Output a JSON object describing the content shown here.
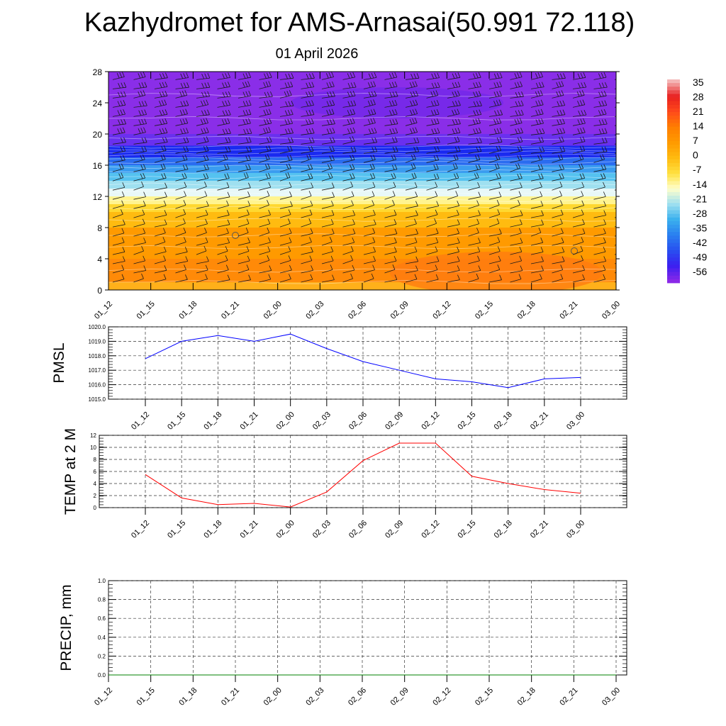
{
  "title": "Kazhydromet for AMS-Arnasai(50.991 72.118)",
  "subtitle": "01 April 2026",
  "colorbar": {
    "labels": [
      "35",
      "28",
      "21",
      "14",
      "7",
      "0",
      "-7",
      "-14",
      "-21",
      "-28",
      "-35",
      "-42",
      "-49",
      "-56"
    ],
    "colors": [
      "#f4b6b6",
      "#e82020",
      "#ff4a1a",
      "#ff7f00",
      "#ff9a00",
      "#ffbb10",
      "#ffe040",
      "#ffffcc",
      "#9fe0f0",
      "#3ab0ee",
      "#2a80f0",
      "#2850f0",
      "#3a20f0",
      "#8a28e8"
    ]
  },
  "chart_data": [
    {
      "type": "heatmap",
      "name": "cross-section",
      "x_ticks": [
        "01_12",
        "01_15",
        "01_18",
        "01_21",
        "02_00",
        "02_03",
        "02_06",
        "02_09",
        "02_12",
        "02_15",
        "02_18",
        "02_21",
        "03_00"
      ],
      "y_ticks": [
        "0",
        "4",
        "8",
        "12",
        "16",
        "20",
        "24",
        "28"
      ],
      "ylim": [
        0,
        28
      ],
      "layers": [
        {
          "from": 0,
          "to": 1,
          "color": "#ffb01a"
        },
        {
          "from": 1,
          "to": 4,
          "color": "#ff8a08"
        },
        {
          "from": 4,
          "to": 8,
          "color": "#ff9a00"
        },
        {
          "from": 8,
          "to": 10,
          "color": "#ffbb10"
        },
        {
          "from": 10,
          "to": 11,
          "color": "#ffd830"
        },
        {
          "from": 11,
          "to": 12,
          "color": "#fff490"
        },
        {
          "from": 12,
          "to": 13,
          "color": "#e8f8f8"
        },
        {
          "from": 13,
          "to": 14,
          "color": "#9fe0f0"
        },
        {
          "from": 14,
          "to": 15,
          "color": "#55c2f0"
        },
        {
          "from": 15,
          "to": 16,
          "color": "#3a9cf0"
        },
        {
          "from": 16,
          "to": 17,
          "color": "#2a6cf0"
        },
        {
          "from": 17,
          "to": 18.5,
          "color": "#1a2af0"
        },
        {
          "from": 18.5,
          "to": 20,
          "color": "#6a30ee"
        },
        {
          "from": 20,
          "to": 28,
          "color": "#8a2ee8"
        }
      ],
      "grid": false
    },
    {
      "type": "line",
      "x": [
        "01_12",
        "01_15",
        "01_18",
        "01_21",
        "02_00",
        "02_03",
        "02_06",
        "02_09",
        "02_12",
        "02_15",
        "02_18",
        "02_21",
        "03_00"
      ],
      "y_ticks": [
        "1015.0",
        "1016.0",
        "1017.0",
        "1018.0",
        "1019.0",
        "1020.0"
      ],
      "ylim": [
        1015.0,
        1020.0
      ],
      "ylabel": "PMSL",
      "series": [
        {
          "values": [
            1017.8,
            1019.0,
            1019.4,
            1019.0,
            1019.5,
            1018.5,
            1017.6,
            1017.0,
            1016.4,
            1016.2,
            1015.8,
            1016.4,
            1016.5
          ],
          "color": "#0000ff"
        }
      ],
      "grid": true
    },
    {
      "type": "line",
      "x": [
        "01_12",
        "01_15",
        "01_18",
        "01_21",
        "02_00",
        "02_03",
        "02_06",
        "02_09",
        "02_12",
        "02_15",
        "02_18",
        "02_21",
        "03_00"
      ],
      "y_ticks": [
        "0",
        "2",
        "4",
        "6",
        "8",
        "10",
        "12"
      ],
      "ylim": [
        0,
        12
      ],
      "ylabel": "TEMP at 2 M",
      "series": [
        {
          "values": [
            5.5,
            1.6,
            0.5,
            0.7,
            0.1,
            2.6,
            7.8,
            10.7,
            10.7,
            5.2,
            4.0,
            3.0,
            2.4
          ],
          "color": "#ff0000"
        }
      ],
      "grid": true
    },
    {
      "type": "line",
      "x": [
        "01_12",
        "01_15",
        "01_18",
        "01_21",
        "02_00",
        "02_03",
        "02_06",
        "02_09",
        "02_12",
        "02_15",
        "02_18",
        "02_21",
        "03_00"
      ],
      "y_ticks": [
        "0.0",
        "0.2",
        "0.4",
        "0.6",
        "0.8",
        "1.0"
      ],
      "ylim": [
        0,
        1.0
      ],
      "ylabel": "PRECIP, mm",
      "series": [
        {
          "values": [
            0,
            0,
            0,
            0,
            0,
            0,
            0,
            0,
            0,
            0,
            0,
            0,
            0
          ],
          "color": "#008000"
        }
      ],
      "grid": true
    }
  ]
}
